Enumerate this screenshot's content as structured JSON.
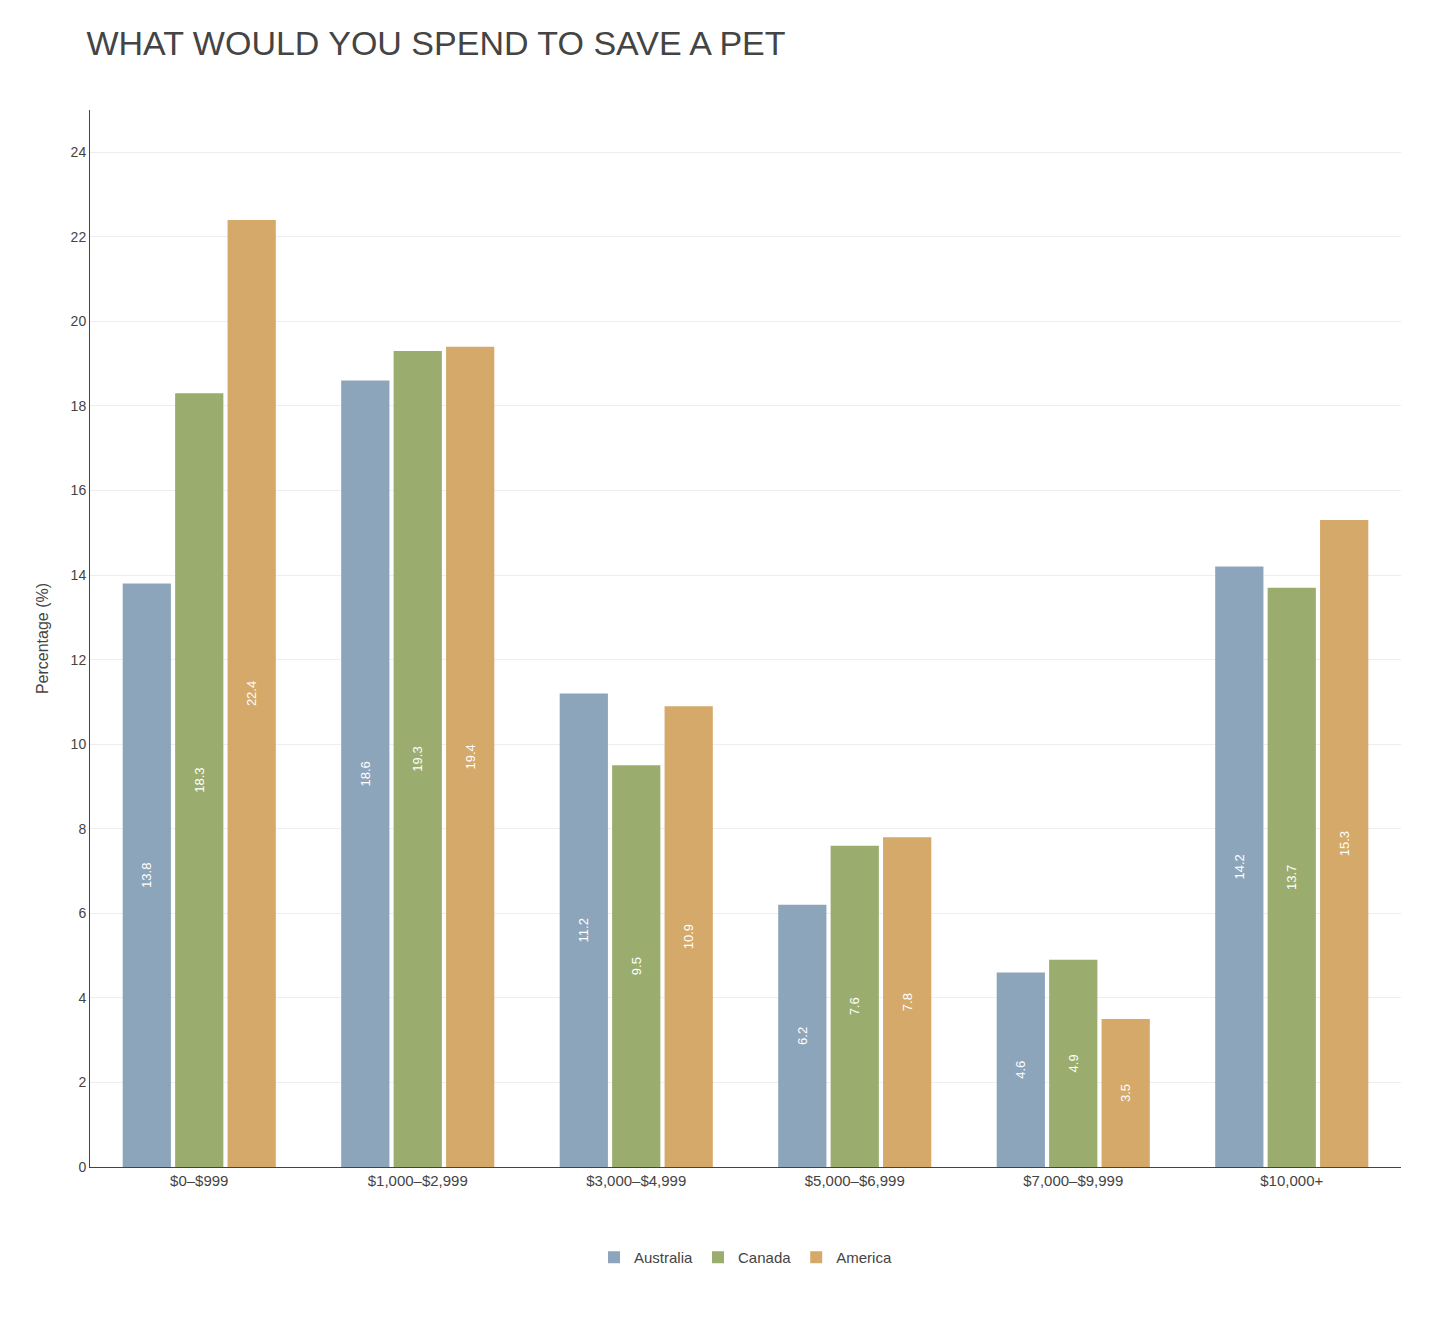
{
  "chart_data": {
    "type": "bar",
    "title": "WHAT WOULD YOU SPEND TO SAVE A PET",
    "ylabel": "Percentage (%)",
    "categories": [
      "$0–$999",
      "$1,000–$2,999",
      "$3,000–$4,999",
      "$5,000–$6,999",
      "$7,000–$9,999",
      "$10,000+"
    ],
    "series": [
      {
        "name": "Australia",
        "color": "#8da5ba",
        "values": [
          13.8,
          18.6,
          11.2,
          6.2,
          4.6,
          14.2
        ]
      },
      {
        "name": "Canada",
        "color": "#9aad6e",
        "values": [
          18.3,
          19.3,
          9.5,
          7.6,
          4.9,
          13.7
        ]
      },
      {
        "name": "America",
        "color": "#d4a96a",
        "values": [
          22.4,
          19.4,
          10.9,
          7.8,
          3.5,
          15.3
        ]
      }
    ],
    "ylim": [
      0,
      25
    ],
    "yticks": [
      0,
      2,
      4,
      6,
      8,
      10,
      12,
      14,
      16,
      18,
      20,
      22,
      24
    ],
    "grid": true,
    "legend": "bottom",
    "data_labels": true
  }
}
